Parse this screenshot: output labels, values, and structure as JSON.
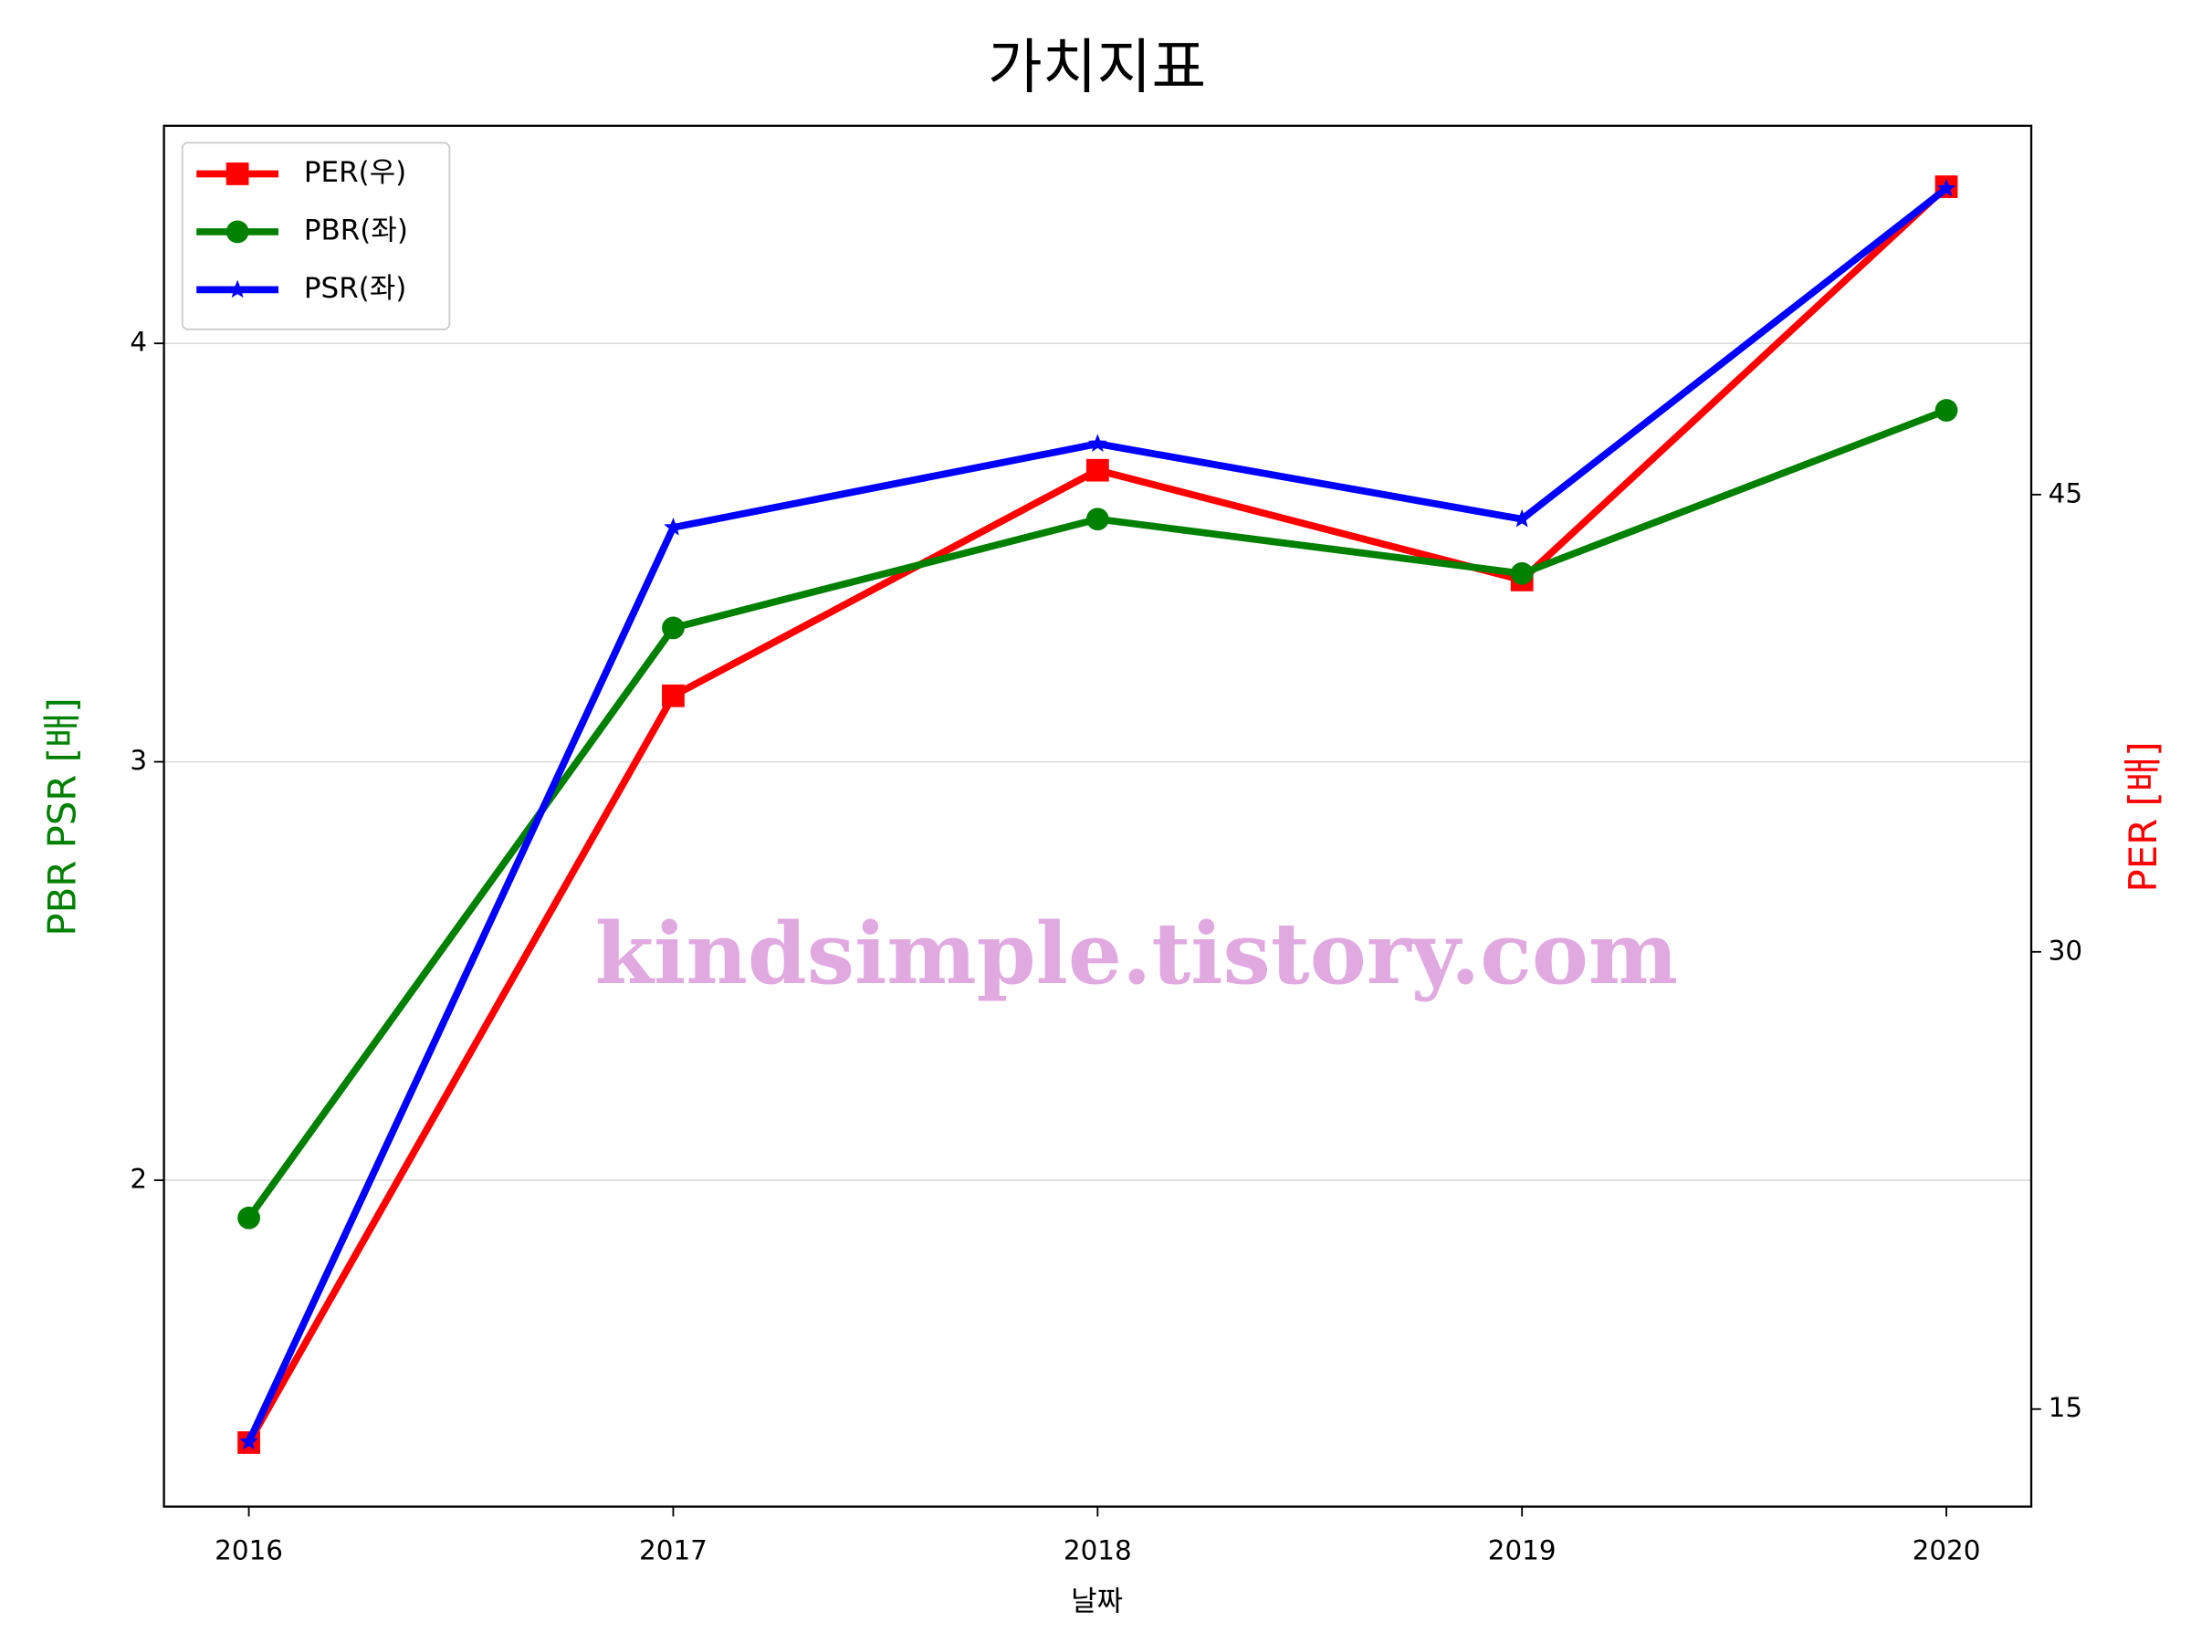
{
  "chart_data": {
    "type": "line",
    "title": "가치지표",
    "x_label": "날짜",
    "y_label": "PBR PSR [배]",
    "y2_label": "PER [배]",
    "watermark": "kindsimple.tistory.com",
    "x": [
      2016,
      2017,
      2018,
      2019,
      2020
    ],
    "xlim": [
      2015.8,
      2020.2
    ],
    "xticks": [
      2016,
      2017,
      2018,
      2019,
      2020
    ],
    "ylim": [
      1.22,
      4.52
    ],
    "yticks": [
      2,
      3,
      4
    ],
    "y2lim": [
      11.8,
      57.1
    ],
    "y2ticks": [
      15,
      30,
      45
    ],
    "grid": true,
    "legend": "upper left",
    "series": [
      {
        "name": "PER(우)",
        "color": "#ff0000",
        "marker": "square",
        "axis": "y2",
        "values": [
          13.9,
          38.4,
          45.8,
          42.2,
          55.1
        ]
      },
      {
        "name": "PBR(좌)",
        "color": "#008000",
        "marker": "circle",
        "values": [
          1.91,
          3.32,
          3.58,
          3.45,
          3.84
        ]
      },
      {
        "name": "PSR(좌)",
        "color": "#0000ff",
        "marker": "star",
        "values": [
          1.375,
          3.56,
          3.76,
          3.58,
          4.37
        ]
      }
    ]
  }
}
